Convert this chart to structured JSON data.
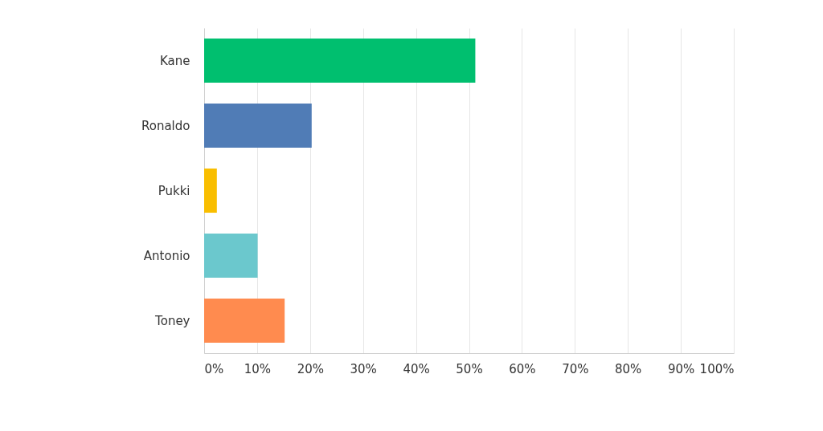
{
  "chart_data": {
    "type": "bar",
    "orientation": "horizontal",
    "categories": [
      "Kane",
      "Ronaldo",
      "Pukki",
      "Antonio",
      "Toney"
    ],
    "values": [
      51.2,
      20.3,
      2.4,
      10.1,
      15.2
    ],
    "colors": [
      "#00bf6f",
      "#507cb6",
      "#f9be00",
      "#6bc8cd",
      "#ff8b4f"
    ],
    "xlim": [
      0,
      100
    ],
    "xticks": [
      {
        "value": 0,
        "label": "0%"
      },
      {
        "value": 10,
        "label": "10%"
      },
      {
        "value": 20,
        "label": "20%"
      },
      {
        "value": 30,
        "label": "30%"
      },
      {
        "value": 40,
        "label": "40%"
      },
      {
        "value": 50,
        "label": "50%"
      },
      {
        "value": 60,
        "label": "60%"
      },
      {
        "value": 70,
        "label": "70%"
      },
      {
        "value": 80,
        "label": "80%"
      },
      {
        "value": 90,
        "label": "90%"
      },
      {
        "value": 100,
        "label": "100%"
      }
    ],
    "grid": "x"
  }
}
